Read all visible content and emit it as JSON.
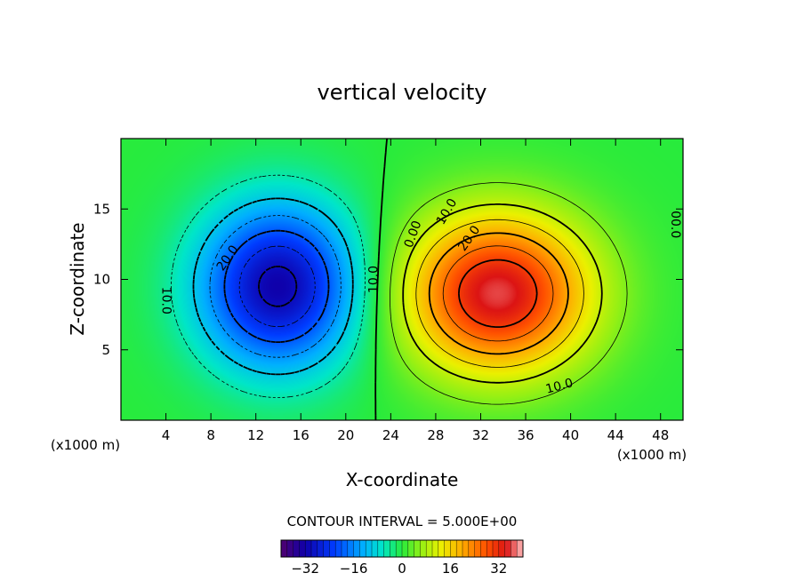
{
  "chart_data": {
    "type": "heatmap",
    "title": "vertical velocity",
    "xlabel": "X-coordinate",
    "ylabel": "Z-coordinate",
    "x_unit": "(x1000 m)",
    "x_unit_right": "(x1000 m)",
    "xlim": [
      0,
      50
    ],
    "ylim": [
      0,
      20
    ],
    "x_ticks": [
      4,
      8,
      12,
      16,
      20,
      24,
      28,
      32,
      36,
      40,
      44,
      48
    ],
    "y_ticks": [
      5,
      10,
      15
    ],
    "x_tick_labels": [
      "4",
      "8",
      "12",
      "16",
      "20",
      "24",
      "28",
      "32",
      "36",
      "40",
      "44",
      "48"
    ],
    "y_tick_labels": [
      "5",
      "10",
      "15"
    ],
    "contour_interval_text": "CONTOUR INTERVAL = 5.000E+00",
    "contour_interval": 5,
    "value_range": [
      -40,
      40
    ],
    "updraft": {
      "center_x": 33.5,
      "center_z": 9,
      "peak": 36
    },
    "downdraft": {
      "center_x": 14,
      "center_z": 9.5,
      "peak": -32
    },
    "contour_labels": [
      {
        "text": "20.0",
        "x": 9.5,
        "z": 11.5,
        "rotate": -55
      },
      {
        "text": "10.0",
        "x": 4,
        "z": 8.5,
        "rotate": 90
      },
      {
        "text": "10.0",
        "x": 22.5,
        "z": 10,
        "rotate": -90
      },
      {
        "text": "0.00",
        "x": 26,
        "z": 13.2,
        "rotate": -70
      },
      {
        "text": "10.0",
        "x": 29,
        "z": 14.8,
        "rotate": -60
      },
      {
        "text": "20.0",
        "x": 31,
        "z": 12.9,
        "rotate": -55
      },
      {
        "text": "10.0",
        "x": 39,
        "z": 2.4,
        "rotate": -15
      },
      {
        "text": "00.0",
        "x": 49.3,
        "z": 13.9,
        "rotate": 90
      }
    ],
    "colorbar": {
      "range": [
        -40,
        40
      ],
      "tick_values": [
        -32,
        -16,
        0,
        16,
        32
      ],
      "tick_labels": [
        "−32",
        "−16",
        "0",
        "16",
        "32"
      ]
    }
  }
}
